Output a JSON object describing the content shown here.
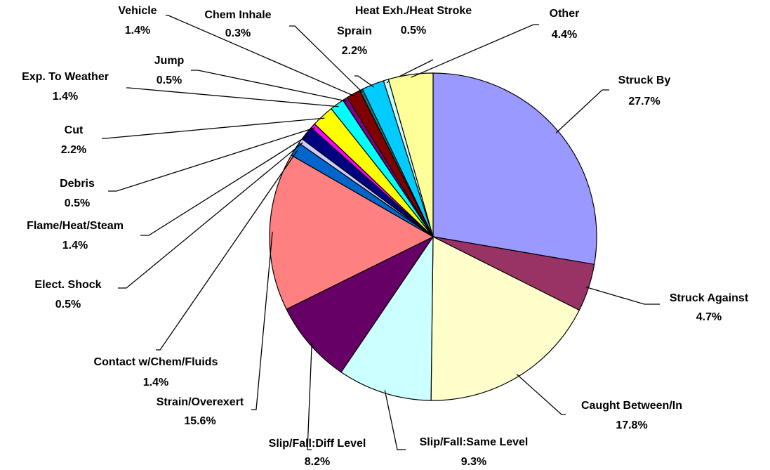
{
  "chart_data": {
    "type": "pie",
    "categories": [
      "Struck By",
      "Struck Against",
      "Caught Between/In",
      "Slip/Fall:Same Level",
      "Slip/Fall:Diff Level",
      "Strain/Overexert",
      "Contact w/Chem/Fluids",
      "Elect. Shock",
      "Flame/Heat/Steam",
      "Debris",
      "Cut",
      "Exp. To Weather",
      "Jump",
      "Vehicle",
      "Chem Inhale",
      "Sprain",
      "Heat Exh./Heat Stroke",
      "Other"
    ],
    "values": [
      27.7,
      4.7,
      17.8,
      9.3,
      8.2,
      15.6,
      1.4,
      0.5,
      1.4,
      0.5,
      2.2,
      1.4,
      0.5,
      1.4,
      0.3,
      2.2,
      0.5,
      4.4
    ],
    "value_labels": [
      "27.7%",
      "4.7%",
      "17.8%",
      "9.3%",
      "8.2%",
      "15.6%",
      "1.4%",
      "0.5%",
      "1.4%",
      "0.5%",
      "2.2%",
      "1.4%",
      "0.5%",
      "1.4%",
      "0.3%",
      "2.2%",
      "0.5%",
      "4.4%"
    ],
    "colors": [
      "#9999FF",
      "#993366",
      "#FFFFCC",
      "#CCFFFF",
      "#660066",
      "#FF8080",
      "#0066CC",
      "#CCCCFF",
      "#000080",
      "#FF00FF",
      "#FFFF00",
      "#00FFFF",
      "#800080",
      "#800000",
      "#008080",
      "#00CCFF",
      "#CCFFFF",
      "#FFFF99"
    ]
  }
}
